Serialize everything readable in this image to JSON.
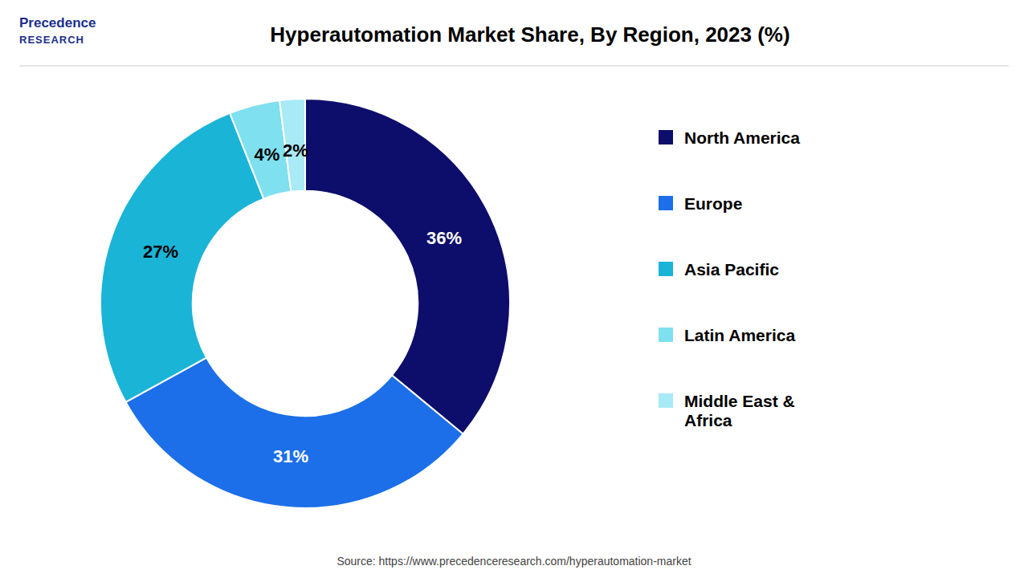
{
  "chart_data": {
    "type": "donut",
    "title": "Hyperautomation Market Share, By Region, 2023 (%)",
    "categories": [
      "North America",
      "Europe",
      "Asia Pacific",
      "Latin America",
      "Middle East &\nAfrica"
    ],
    "values": [
      36,
      31,
      27,
      4,
      2
    ],
    "value_labels": [
      "36%",
      "31%",
      "27%",
      "4%",
      "2%"
    ],
    "colors": [
      "#0d0d6b",
      "#1c6fe8",
      "#1ab4d7",
      "#7fe0ef",
      "#a8eaf5"
    ],
    "data_labels": true,
    "legend": "right",
    "annotations": [
      "Source: https://www.precedenceresearch.com/hyperautomation-market",
      "Precedence",
      "RESEARCH"
    ]
  }
}
